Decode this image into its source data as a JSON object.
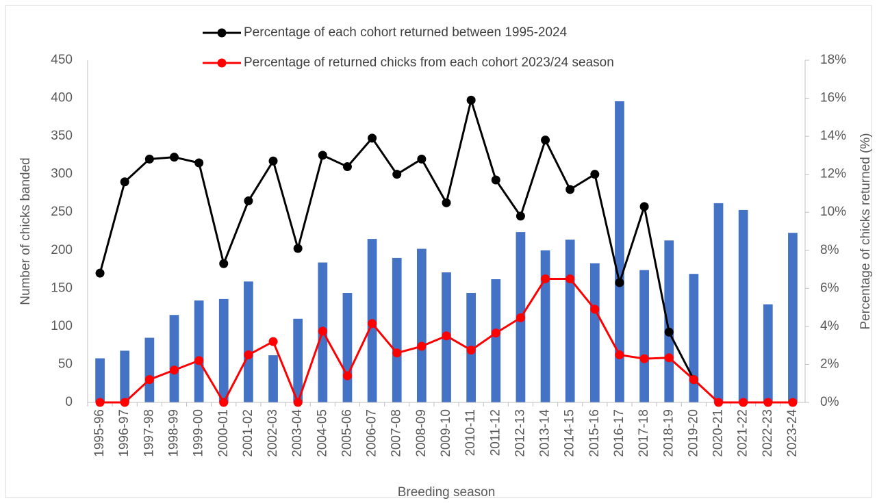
{
  "chart_data": {
    "type": "bar-line",
    "x_label": "Breeding season",
    "y_label": "Number of chicks banded",
    "y2_label": "Percentage of chicks returned (%)",
    "categories": [
      "1995-96",
      "1996-97",
      "1997-98",
      "1998-99",
      "1999-00",
      "2000-01",
      "2001-02",
      "2002-03",
      "2003-04",
      "2004-05",
      "2005-06",
      "2006-07",
      "2007-08",
      "2008-09",
      "2009-10",
      "2010-11",
      "2011-12",
      "2012-13",
      "2013-14",
      "2014-15",
      "2015-16",
      "2016-17",
      "2017-18",
      "2018-19",
      "2019-20",
      "2020-21",
      "2021-22",
      "2022-23",
      "2023-24"
    ],
    "bars": {
      "color": "#4472c4",
      "values": [
        58,
        68,
        85,
        115,
        134,
        136,
        159,
        62,
        110,
        184,
        144,
        215,
        190,
        202,
        171,
        144,
        162,
        224,
        200,
        214,
        183,
        396,
        174,
        213,
        169,
        262,
        253,
        129,
        223
      ]
    },
    "series": [
      {
        "name": "Percentage of each cohort returned between 1995-2024",
        "color": "#000000",
        "axis": "y2",
        "values": [
          6.8,
          11.6,
          12.8,
          12.9,
          12.6,
          7.3,
          10.6,
          12.7,
          8.1,
          13.0,
          12.4,
          13.9,
          12.0,
          12.8,
          10.5,
          15.9,
          11.7,
          9.8,
          13.8,
          11.2,
          12.0,
          6.3,
          10.3,
          3.7,
          1.2,
          null,
          null,
          null,
          null
        ]
      },
      {
        "name": "Percentage of returned chicks from each cohort 2023/24 season",
        "color": "#ff0000",
        "axis": "y2",
        "values": [
          0,
          0,
          1.2,
          1.7,
          2.2,
          0,
          2.5,
          3.2,
          0,
          3.75,
          1.4,
          4.15,
          2.6,
          2.95,
          3.5,
          2.75,
          3.65,
          4.45,
          6.5,
          6.5,
          4.9,
          2.5,
          2.3,
          2.35,
          1.2,
          0,
          0,
          0,
          0
        ]
      }
    ],
    "ylim": [
      0,
      450
    ],
    "yticks": [
      0,
      50,
      100,
      150,
      200,
      250,
      300,
      350,
      400,
      450
    ],
    "y2lim": [
      0,
      18
    ],
    "y2ticks": [
      {
        "value": 0,
        "label": "0%"
      },
      {
        "value": 2,
        "label": "2%"
      },
      {
        "value": 4,
        "label": "4%"
      },
      {
        "value": 6,
        "label": "6%"
      },
      {
        "value": 8,
        "label": "8%"
      },
      {
        "value": 10,
        "label": "10%"
      },
      {
        "value": 12,
        "label": "12%"
      },
      {
        "value": 14,
        "label": "14%"
      },
      {
        "value": 16,
        "label": "16%"
      },
      {
        "value": 18,
        "label": "18%"
      }
    ],
    "legend": "top"
  }
}
